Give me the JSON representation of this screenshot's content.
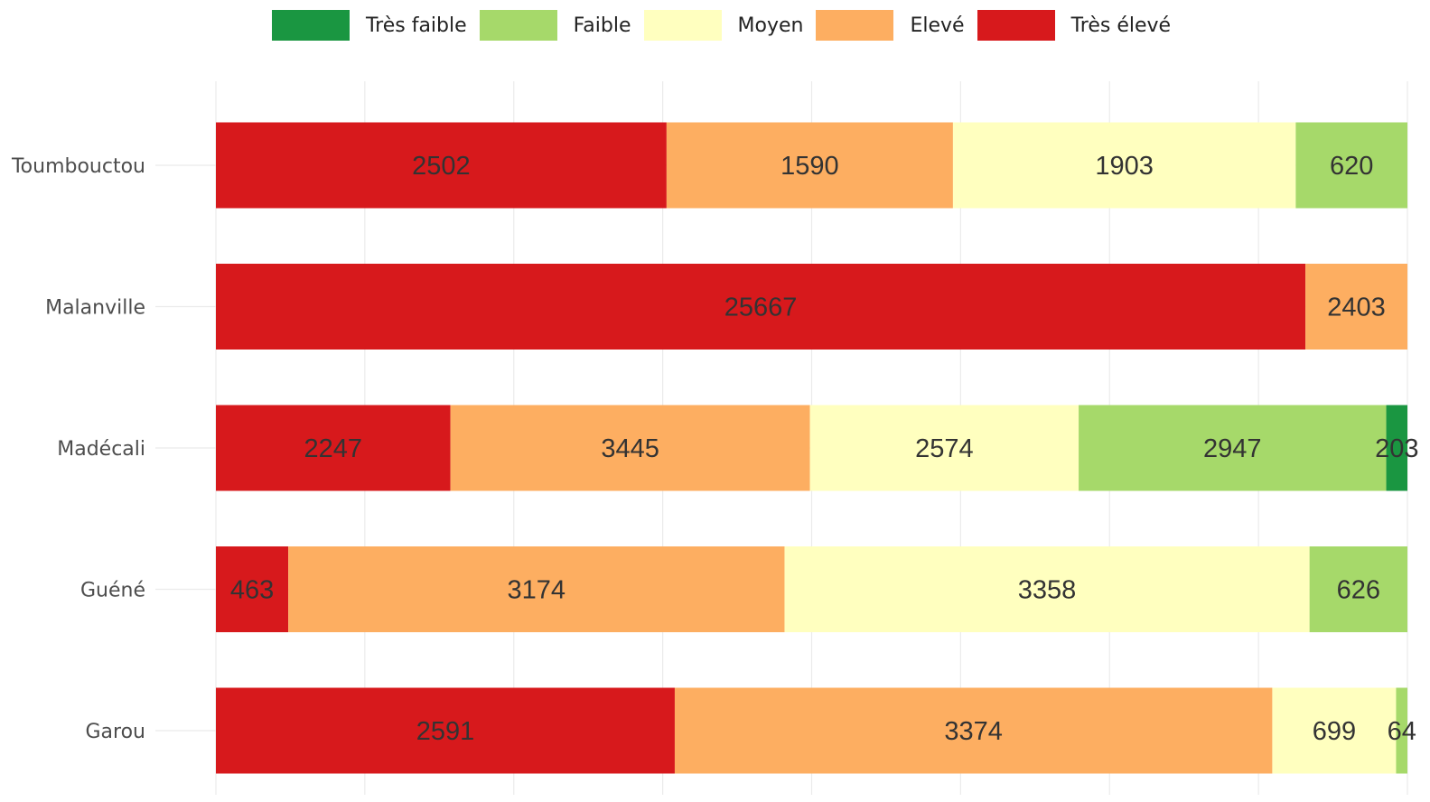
{
  "chart_data": {
    "type": "bar",
    "orientation": "horizontal",
    "stacked": true,
    "normalized": true,
    "title": "",
    "xlabel": "",
    "ylabel": "",
    "grid": true,
    "legend_position": "top",
    "categories": [
      "Toumbouctou",
      "Malanville",
      "Madécali",
      "Guéné",
      "Garou"
    ],
    "series": [
      {
        "name": "Très élevé",
        "color": "#d7191c",
        "values": [
          2502,
          25667,
          2247,
          463,
          2591
        ]
      },
      {
        "name": "Elevé",
        "color": "#fdae61",
        "values": [
          1590,
          2403,
          3445,
          3174,
          3374
        ]
      },
      {
        "name": "Moyen",
        "color": "#ffffbf",
        "values": [
          1903,
          0,
          2574,
          3358,
          699
        ]
      },
      {
        "name": "Faible",
        "color": "#a6d96a",
        "values": [
          620,
          0,
          2947,
          626,
          64
        ]
      },
      {
        "name": "Très faible",
        "color": "#1a9641",
        "values": [
          0,
          0,
          203,
          0,
          0
        ]
      }
    ],
    "legend_order": [
      "Très faible",
      "Faible",
      "Moyen",
      "Elevé",
      "Très élevé"
    ],
    "data_labels": [
      [
        "2502",
        "1590",
        "1903",
        "620",
        ""
      ],
      [
        "25667",
        "2403",
        "",
        "",
        ""
      ],
      [
        "2247",
        "3445",
        "2574",
        "2947",
        "203"
      ],
      [
        "463",
        "3174",
        "3358",
        "626",
        ""
      ],
      [
        "2591",
        "3374",
        "699",
        "64",
        ""
      ]
    ]
  }
}
